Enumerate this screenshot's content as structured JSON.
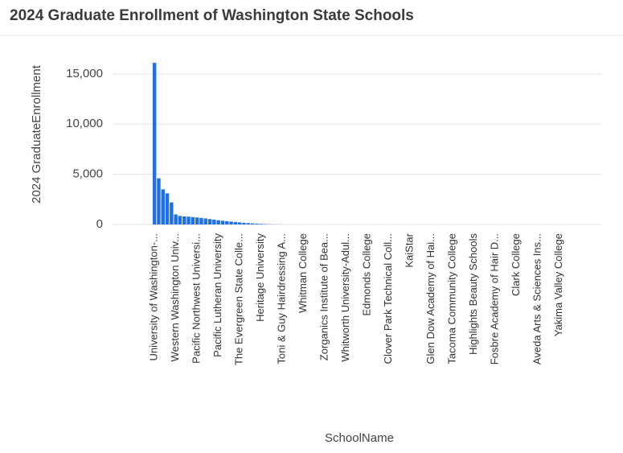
{
  "chart_data": {
    "type": "bar",
    "title": "2024 Graduate Enrollment of Washington State Schools",
    "x_label": "SchoolName",
    "y_label": "2024 GraduateEnrollment",
    "color": "#1f6fe5",
    "grid": true,
    "ylim": [
      0,
      18000
    ],
    "yticks": [
      0,
      {
        "value": 5000,
        "label": "5,000"
      },
      {
        "value": 10000,
        "label": "10,000"
      },
      {
        "value": 15000,
        "label": "15,000"
      }
    ],
    "categories": [
      "University of Washington-...",
      null,
      null,
      null,
      null,
      "Western Washington Univ...",
      null,
      null,
      null,
      null,
      "Pacific Northwest Universi...",
      null,
      null,
      null,
      null,
      "Pacific Lutheran University",
      null,
      null,
      null,
      null,
      "The Evergreen State Colle...",
      null,
      null,
      null,
      null,
      "Heritage University",
      null,
      null,
      null,
      null,
      "Toni & Guy Hairdressing A...",
      null,
      null,
      null,
      null,
      "Whitman College",
      null,
      null,
      null,
      null,
      "Zorganics Institute of Bea...",
      null,
      null,
      null,
      null,
      "Whitworth University-Adul...",
      null,
      null,
      null,
      null,
      "Edmonds College",
      null,
      null,
      null,
      null,
      "Clover Park Technical Coll...",
      null,
      null,
      null,
      null,
      "KaiStar",
      null,
      null,
      null,
      null,
      "Glen Dow Academy of Hai...",
      null,
      null,
      null,
      null,
      "Tacoma Community College",
      null,
      null,
      null,
      null,
      "Highlights Beauty Schools",
      null,
      null,
      null,
      null,
      "Fosbre Academy of Hair D...",
      null,
      null,
      null,
      null,
      "Clark College",
      null,
      null,
      null,
      null,
      "Aveda Arts & Sciences Ins...",
      null,
      null,
      null,
      null,
      "Yakima Valley College",
      null,
      null,
      null,
      null,
      null,
      null,
      null,
      null,
      null
    ],
    "values": [
      16100,
      4600,
      3500,
      3100,
      2200,
      1000,
      850,
      800,
      780,
      740,
      700,
      650,
      600,
      540,
      480,
      420,
      370,
      330,
      290,
      250,
      210,
      170,
      140,
      110,
      80,
      60,
      40,
      25,
      15,
      10,
      0,
      0,
      0,
      0,
      0,
      0,
      0,
      0,
      0,
      0,
      0,
      0,
      0,
      0,
      0,
      0,
      0,
      0,
      0,
      0,
      0,
      0,
      0,
      0,
      0,
      0,
      0,
      0,
      0,
      0,
      0,
      0,
      0,
      0,
      0,
      0,
      0,
      0,
      0,
      0,
      0,
      0,
      0,
      0,
      0,
      0,
      0,
      0,
      0,
      0,
      0,
      0,
      0,
      0,
      0,
      0,
      0,
      0,
      0,
      0,
      0,
      0,
      0,
      0,
      0,
      0,
      0,
      0,
      0,
      0,
      0,
      0,
      0,
      0,
      0
    ]
  }
}
